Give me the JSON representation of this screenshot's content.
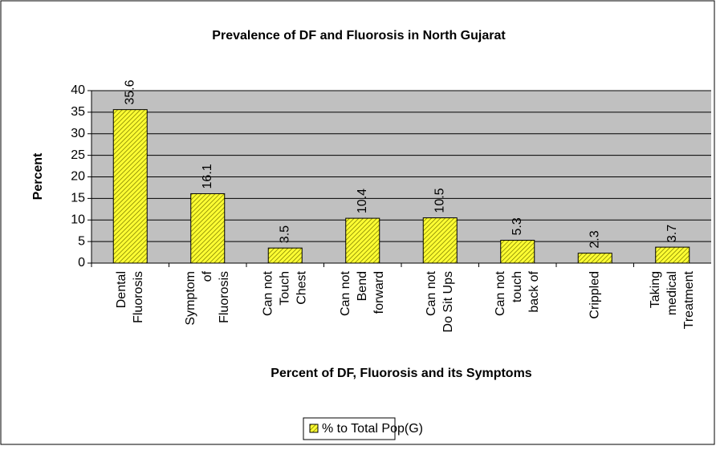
{
  "chart_data": {
    "type": "bar",
    "title": "Prevalence of DF and Fluorosis in North Gujarat",
    "x_label": "Percent of DF, Fluorosis and its Symptoms",
    "y_label": "Percent",
    "categories": [
      [
        "Dental",
        "Fluorosis"
      ],
      [
        "Symptom",
        "of",
        "Fluorosis"
      ],
      [
        "Can not",
        "Touch",
        "Chest"
      ],
      [
        "Can not",
        "Bend",
        "forward"
      ],
      [
        "Can not",
        "Do Sit Ups"
      ],
      [
        "Can not",
        "touch",
        "back of"
      ],
      [
        "Crippled"
      ],
      [
        "Taking",
        "medical",
        "Treatment"
      ]
    ],
    "series": [
      {
        "name": "% to Total Pop(G)",
        "color": "#cccc00",
        "values": [
          35.6,
          16.1,
          3.5,
          10.4,
          10.5,
          5.3,
          2.3,
          3.7
        ]
      }
    ],
    "ylim": [
      0,
      40
    ],
    "yticks": [
      0,
      5,
      10,
      15,
      20,
      25,
      30,
      35,
      40
    ],
    "grid": true,
    "legend": "bottom"
  }
}
